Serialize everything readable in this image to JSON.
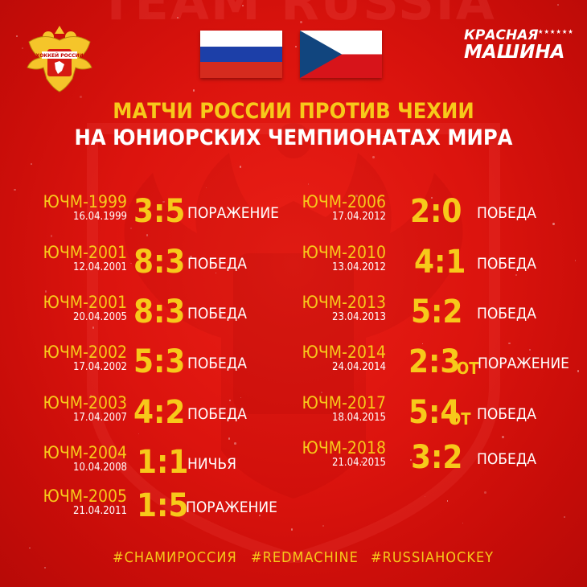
{
  "watermark_text": "TEAM RUSSIA",
  "emblem": {
    "text": "ХОККЕЙ РОССИИ"
  },
  "flags": [
    {
      "country": "Russia",
      "stripes": [
        "#ffffff",
        "#1c3fa8",
        "#d52b1e"
      ]
    },
    {
      "country": "Czech Republic",
      "colors": {
        "top": "#ffffff",
        "bottom": "#d7141a",
        "triangle": "#11457e"
      }
    }
  ],
  "brand": {
    "line1": "КРАСНАЯ",
    "line2": "МАШИНА",
    "stars": "★★★★★★"
  },
  "title": {
    "line1": "МАТЧИ РОССИИ ПРОТИВ ЧЕХИИ",
    "line2": "НА ЮНИОРСКИХ ЧЕМПИОНАТАХ МИРА"
  },
  "colors": {
    "accent": "#f7c91a",
    "text": "#ffffff",
    "background": "#dc140e"
  },
  "matches_left": [
    {
      "name": "ЮЧМ-1999",
      "date": "16.04.1999",
      "score": "3:5",
      "ot": "",
      "result": "ПОРАЖЕНИЕ"
    },
    {
      "name": "ЮЧМ-2001",
      "date": "12.04.2001",
      "score": "8:3",
      "ot": "",
      "result": "ПОБЕДА"
    },
    {
      "name": "ЮЧМ-2001",
      "date": "20.04.2005",
      "score": "8:3",
      "ot": "",
      "result": "ПОБЕДА"
    },
    {
      "name": "ЮЧМ-2002",
      "date": "17.04.2002",
      "score": "5:3",
      "ot": "",
      "result": "ПОБЕДА"
    },
    {
      "name": "ЮЧМ-2003",
      "date": "17.04.2007",
      "score": "4:2",
      "ot": "",
      "result": "ПОБЕДА"
    },
    {
      "name": "ЮЧМ-2004",
      "date": "10.04.2008",
      "score": "1:1",
      "ot": "",
      "result": "НИЧЬЯ"
    },
    {
      "name": "ЮЧМ-2005",
      "date": "21.04.2011",
      "score": "1:5",
      "ot": "",
      "result": "ПОРАЖЕНИЕ"
    }
  ],
  "matches_right": [
    {
      "name": "ЮЧМ-2006",
      "date": "17.04.2012",
      "score": "2:0",
      "ot": "",
      "result": "ПОБЕДА"
    },
    {
      "name": "ЮЧМ-2010",
      "date": "13.04.2012",
      "score": "4:1",
      "ot": "",
      "result": "ПОБЕДА"
    },
    {
      "name": "ЮЧМ-2013",
      "date": "23.04.2013",
      "score": "5:2",
      "ot": "",
      "result": "ПОБЕДА"
    },
    {
      "name": "ЮЧМ-2014",
      "date": "24.04.2014",
      "score": "2:3",
      "ot": "ОТ",
      "result": "ПОРАЖЕНИЕ"
    },
    {
      "name": "ЮЧМ-2017",
      "date": "18.04.2015",
      "score": "5:4",
      "ot": "ОТ",
      "result": "ПОБЕДА"
    },
    {
      "name": "ЮЧМ-2018",
      "date": "21.04.2015",
      "score": "3:2",
      "ot": "",
      "result": "ПОБЕДА"
    }
  ],
  "hashtags": [
    "#СНАМИРОССИЯ",
    "#REDMACHINE",
    "#RUSSIAHOCKEY"
  ]
}
